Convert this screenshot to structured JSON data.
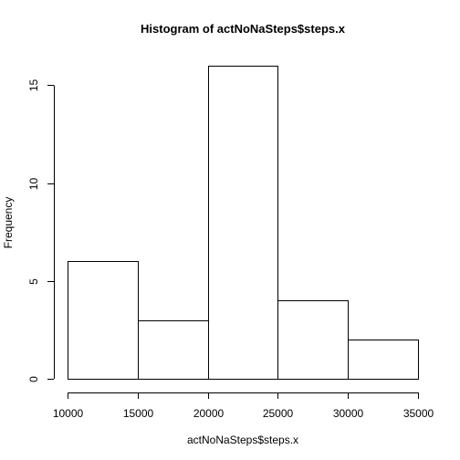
{
  "chart_data": {
    "type": "bar",
    "title": "Histogram of actNoNaSteps$steps.x",
    "xlabel": "actNoNaSteps$steps.x",
    "ylabel": "Frequency",
    "bins": [
      {
        "start": 10000,
        "end": 15000,
        "count": 6
      },
      {
        "start": 15000,
        "end": 20000,
        "count": 3
      },
      {
        "start": 20000,
        "end": 25000,
        "count": 16
      },
      {
        "start": 25000,
        "end": 30000,
        "count": 4
      },
      {
        "start": 30000,
        "end": 35000,
        "count": 2
      }
    ],
    "xlim": [
      10000,
      35000
    ],
    "ylim": [
      0,
      16
    ],
    "x_ticks": [
      10000,
      15000,
      20000,
      25000,
      30000,
      35000
    ],
    "y_ticks": [
      0,
      5,
      10,
      15
    ],
    "grid": false,
    "legend": "none"
  }
}
